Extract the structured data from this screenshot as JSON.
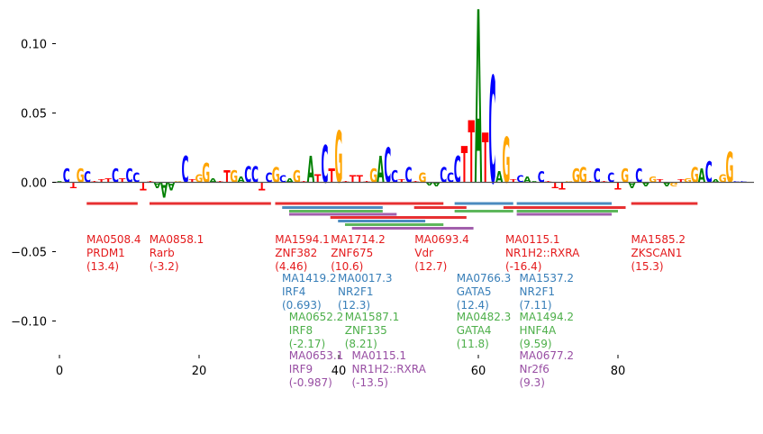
{
  "chart_data": {
    "type": "sequence-logo",
    "title": "",
    "xlabel": "",
    "ylabel": "",
    "xlim": [
      -1,
      99.5
    ],
    "ylim": [
      -0.125,
      0.125
    ],
    "x_ticks": [
      0,
      20,
      40,
      60,
      80
    ],
    "y_ticks": [
      0.1,
      0.05,
      0.0,
      -0.05,
      -0.1
    ],
    "y_tick_labels": [
      "0.10",
      "0.05",
      "0.00",
      "−0.05",
      "−0.10"
    ],
    "base_colors": {
      "A": "#008000",
      "C": "#0000ff",
      "G": "#ffa500",
      "T": "#ff0000"
    },
    "logo": [
      {
        "pos": 0,
        "base": "A",
        "value": 0.001
      },
      {
        "pos": 1,
        "base": "C",
        "value": 0.01
      },
      {
        "pos": 2,
        "base": "T",
        "value": -0.004
      },
      {
        "pos": 3,
        "base": "G",
        "value": 0.01
      },
      {
        "pos": 4,
        "base": "C",
        "value": 0.008
      },
      {
        "pos": 5,
        "base": "T",
        "value": 0.001
      },
      {
        "pos": 6,
        "base": "T",
        "value": 0.002
      },
      {
        "pos": 7,
        "base": "T",
        "value": 0.003
      },
      {
        "pos": 8,
        "base": "C",
        "value": 0.01
      },
      {
        "pos": 9,
        "base": "T",
        "value": 0.003
      },
      {
        "pos": 10,
        "base": "C",
        "value": 0.01
      },
      {
        "pos": 11,
        "base": "C",
        "value": 0.007
      },
      {
        "pos": 12,
        "base": "T",
        "value": -0.006
      },
      {
        "pos": 13,
        "base": "T",
        "value": 0.001
      },
      {
        "pos": 14,
        "base": "A",
        "value": -0.004
      },
      {
        "pos": 15,
        "base": "A",
        "value": -0.011
      },
      {
        "pos": 16,
        "base": "A",
        "value": -0.006
      },
      {
        "pos": 17,
        "base": "G",
        "value": 0.001
      },
      {
        "pos": 18,
        "base": "C",
        "value": 0.019
      },
      {
        "pos": 19,
        "base": "T",
        "value": 0.002
      },
      {
        "pos": 20,
        "base": "G",
        "value": 0.006
      },
      {
        "pos": 21,
        "base": "G",
        "value": 0.014
      },
      {
        "pos": 22,
        "base": "A",
        "value": 0.003
      },
      {
        "pos": 23,
        "base": "T",
        "value": 0.001
      },
      {
        "pos": 24,
        "base": "T",
        "value": 0.009
      },
      {
        "pos": 25,
        "base": "G",
        "value": 0.009
      },
      {
        "pos": 26,
        "base": "A",
        "value": 0.004
      },
      {
        "pos": 27,
        "base": "C",
        "value": 0.012
      },
      {
        "pos": 28,
        "base": "C",
        "value": 0.012
      },
      {
        "pos": 29,
        "base": "T",
        "value": -0.006
      },
      {
        "pos": 30,
        "base": "C",
        "value": 0.007
      },
      {
        "pos": 31,
        "base": "G",
        "value": 0.011
      },
      {
        "pos": 32,
        "base": "C",
        "value": 0.005
      },
      {
        "pos": 33,
        "base": "A",
        "value": 0.003
      },
      {
        "pos": 34,
        "base": "G",
        "value": 0.009
      },
      {
        "pos": 35,
        "base": "T",
        "value": 0.001
      },
      {
        "pos": 36,
        "base": "A",
        "value": 0.019
      },
      {
        "pos": 37,
        "base": "T",
        "value": 0.006
      },
      {
        "pos": 38,
        "base": "C",
        "value": 0.027
      },
      {
        "pos": 39,
        "base": "T",
        "value": 0.01
      },
      {
        "pos": 40,
        "base": "G",
        "value": 0.037
      },
      {
        "pos": 41,
        "base": "T",
        "value": 0.001
      },
      {
        "pos": 42,
        "base": "T",
        "value": 0.005
      },
      {
        "pos": 43,
        "base": "T",
        "value": 0.005
      },
      {
        "pos": 44,
        "base": "T",
        "value": 0.001
      },
      {
        "pos": 45,
        "base": "G",
        "value": 0.01
      },
      {
        "pos": 46,
        "base": "A",
        "value": 0.019
      },
      {
        "pos": 47,
        "base": "C",
        "value": 0.025
      },
      {
        "pos": 48,
        "base": "C",
        "value": 0.009
      },
      {
        "pos": 49,
        "base": "T",
        "value": 0.002
      },
      {
        "pos": 50,
        "base": "C",
        "value": 0.011
      },
      {
        "pos": 51,
        "base": "T",
        "value": 0.001
      },
      {
        "pos": 52,
        "base": "G",
        "value": 0.007
      },
      {
        "pos": 53,
        "base": "A",
        "value": -0.002
      },
      {
        "pos": 54,
        "base": "A",
        "value": -0.003
      },
      {
        "pos": 55,
        "base": "C",
        "value": 0.011
      },
      {
        "pos": 56,
        "base": "C",
        "value": 0.007
      },
      {
        "pos": 57,
        "base": "C",
        "value": 0.019
      },
      {
        "pos": 58,
        "base": "T",
        "value": 0.026
      },
      {
        "pos": 59,
        "base": "T",
        "value": 0.045
      },
      {
        "pos": 60,
        "base": "A",
        "value": 0.125
      },
      {
        "pos": 61,
        "base": "T",
        "value": 0.036
      },
      {
        "pos": 62,
        "base": "C",
        "value": 0.077
      },
      {
        "pos": 63,
        "base": "A",
        "value": 0.008
      },
      {
        "pos": 64,
        "base": "G",
        "value": 0.033
      },
      {
        "pos": 65,
        "base": "T",
        "value": 0.002
      },
      {
        "pos": 66,
        "base": "C",
        "value": 0.005
      },
      {
        "pos": 67,
        "base": "A",
        "value": 0.004
      },
      {
        "pos": 68,
        "base": "A",
        "value": 0.001
      },
      {
        "pos": 69,
        "base": "C",
        "value": 0.008
      },
      {
        "pos": 70,
        "base": "T",
        "value": 0.001
      },
      {
        "pos": 71,
        "base": "T",
        "value": -0.004
      },
      {
        "pos": 72,
        "base": "T",
        "value": -0.005
      },
      {
        "pos": 73,
        "base": "G",
        "value": 0.001
      },
      {
        "pos": 74,
        "base": "G",
        "value": 0.01
      },
      {
        "pos": 75,
        "base": "G",
        "value": 0.011
      },
      {
        "pos": 76,
        "base": "T",
        "value": 0.001
      },
      {
        "pos": 77,
        "base": "C",
        "value": 0.01
      },
      {
        "pos": 78,
        "base": "T",
        "value": 0.001
      },
      {
        "pos": 79,
        "base": "C",
        "value": 0.007
      },
      {
        "pos": 80,
        "base": "T",
        "value": -0.005
      },
      {
        "pos": 81,
        "base": "G",
        "value": 0.01
      },
      {
        "pos": 82,
        "base": "A",
        "value": -0.004
      },
      {
        "pos": 83,
        "base": "C",
        "value": 0.01
      },
      {
        "pos": 84,
        "base": "A",
        "value": -0.003
      },
      {
        "pos": 85,
        "base": "G",
        "value": 0.004
      },
      {
        "pos": 86,
        "base": "T",
        "value": 0.002
      },
      {
        "pos": 87,
        "base": "A",
        "value": -0.003
      },
      {
        "pos": 88,
        "base": "G",
        "value": -0.003
      },
      {
        "pos": 89,
        "base": "T",
        "value": 0.002
      },
      {
        "pos": 90,
        "base": "G",
        "value": 0.003
      },
      {
        "pos": 91,
        "base": "G",
        "value": 0.011
      },
      {
        "pos": 92,
        "base": "A",
        "value": 0.01
      },
      {
        "pos": 93,
        "base": "C",
        "value": 0.015
      },
      {
        "pos": 94,
        "base": "A",
        "value": 0.002
      },
      {
        "pos": 95,
        "base": "G",
        "value": 0.006
      },
      {
        "pos": 96,
        "base": "G",
        "value": 0.022
      },
      {
        "pos": 97,
        "base": "C",
        "value": 0.001
      },
      {
        "pos": 98,
        "base": "C",
        "value": 0.001
      }
    ],
    "motif_colors": {
      "red": "#e41a1c",
      "blue": "#377eb8",
      "green": "#4daf4a",
      "purple": "#984ea3"
    },
    "motifs": [
      {
        "id": "MA0508.4",
        "name": "PRDM1",
        "score": "(13.4)",
        "color": "red",
        "start": 3.9,
        "end": 11.2,
        "row": 0
      },
      {
        "id": "MA0858.1",
        "name": "Rarb",
        "score": "(-3.2)",
        "color": "red",
        "start": 12.9,
        "end": 30.3,
        "row": 0
      },
      {
        "id": "MA1594.1",
        "name": "ZNF382",
        "score": "(4.46)",
        "color": "red",
        "start": 30.9,
        "end": 55.0,
        "row": 0
      },
      {
        "id": "MA1714.2",
        "name": "ZNF675",
        "score": "(10.6)",
        "color": "red",
        "start": 38.8,
        "end": 58.3,
        "row": 4
      },
      {
        "id": "MA0693.4",
        "name": "Vdr",
        "score": "(12.7)",
        "color": "red",
        "start": 50.8,
        "end": 58.3,
        "row": 1
      },
      {
        "id": "MA0115.1",
        "name": "NR1H2::RXRA",
        "score": "(-16.4)",
        "color": "red",
        "start": 63.6,
        "end": 81.1,
        "row": 1
      },
      {
        "id": "MA1585.2",
        "name": "ZKSCAN1",
        "score": "(15.3)",
        "color": "red",
        "start": 81.9,
        "end": 91.4,
        "row": 0
      },
      {
        "id": "MA1419.2",
        "name": "IRF4",
        "score": "(0.693)",
        "color": "blue",
        "start": 31.9,
        "end": 46.3,
        "row": 1
      },
      {
        "id": "MA0017.3",
        "name": "NR2F1",
        "score": "(12.3)",
        "color": "blue",
        "start": 39.9,
        "end": 52.4,
        "row": 5
      },
      {
        "id": "MA0766.3",
        "name": "GATA5",
        "score": "(12.4)",
        "color": "blue",
        "start": 56.6,
        "end": 65.0,
        "row": 0
      },
      {
        "id": "MA1537.2",
        "name": "NR2F1",
        "score": "(7.11)",
        "color": "blue",
        "start": 65.5,
        "end": 79.1,
        "row": 0
      },
      {
        "id": "MA0652.2",
        "name": "IRF8",
        "score": "(-2.17)",
        "color": "green",
        "start": 32.9,
        "end": 46.3,
        "row": 2
      },
      {
        "id": "MA1587.1",
        "name": "ZNF135",
        "score": "(8.21)",
        "color": "green",
        "start": 40.9,
        "end": 55.0,
        "row": 6
      },
      {
        "id": "MA0482.3",
        "name": "GATA4",
        "score": "(11.8)",
        "color": "green",
        "start": 56.6,
        "end": 65.0,
        "row": 2
      },
      {
        "id": "MA1494.2",
        "name": "HNF4A",
        "score": "(9.59)",
        "color": "green",
        "start": 65.5,
        "end": 80.0,
        "row": 2
      },
      {
        "id": "MA0653.1",
        "name": "IRF9",
        "score": "(-0.987)",
        "color": "purple",
        "start": 32.9,
        "end": 48.3,
        "row": 3
      },
      {
        "id": "MA0115.1",
        "name": "NR1H2::RXRA",
        "score": "(-13.5)",
        "color": "purple",
        "start": 41.9,
        "end": 59.3,
        "row": 7
      },
      {
        "id": "MA0677.2",
        "name": "Nr2f6",
        "score": "(9.3)",
        "color": "purple",
        "start": 65.5,
        "end": 79.1,
        "row": 3
      }
    ],
    "label_groups": [
      {
        "x": 4,
        "color": "red",
        "row": 0,
        "motif": 0
      },
      {
        "x": 13,
        "color": "red",
        "row": 0,
        "motif": 1
      },
      {
        "x": 31,
        "color": "red",
        "row": 0,
        "motif": 2
      },
      {
        "x": 39,
        "color": "red",
        "row": 0,
        "motif": 3
      },
      {
        "x": 51,
        "color": "red",
        "row": 0,
        "motif": 4
      },
      {
        "x": 64,
        "color": "red",
        "row": 0,
        "motif": 5
      },
      {
        "x": 82,
        "color": "red",
        "row": 0,
        "motif": 6
      },
      {
        "x": 32,
        "color": "blue",
        "row": 1,
        "motif": 7
      },
      {
        "x": 40,
        "color": "blue",
        "row": 1,
        "motif": 8
      },
      {
        "x": 57,
        "color": "blue",
        "row": 1,
        "motif": 9
      },
      {
        "x": 66,
        "color": "blue",
        "row": 1,
        "motif": 10
      },
      {
        "x": 33,
        "color": "green",
        "row": 2,
        "motif": 11
      },
      {
        "x": 41,
        "color": "green",
        "row": 2,
        "motif": 12
      },
      {
        "x": 57,
        "color": "green",
        "row": 2,
        "motif": 13
      },
      {
        "x": 66,
        "color": "green",
        "row": 2,
        "motif": 14
      },
      {
        "x": 33,
        "color": "purple",
        "row": 3,
        "motif": 15
      },
      {
        "x": 42,
        "color": "purple",
        "row": 3,
        "motif": 16
      },
      {
        "x": 66,
        "color": "purple",
        "row": 3,
        "motif": 17
      }
    ]
  }
}
